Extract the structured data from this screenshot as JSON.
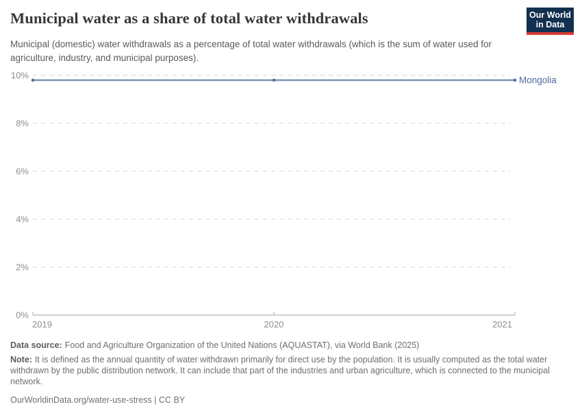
{
  "logo": {
    "line1": "Our World",
    "line2": "in Data"
  },
  "chart_data": {
    "type": "line",
    "title": "Municipal water as a share of total water withdrawals",
    "subtitle": "Municipal (domestic) water withdrawals as a percentage of total water withdrawals (which is the sum of water used for agriculture, industry, and municipal purposes).",
    "x": [
      2019,
      2020,
      2021
    ],
    "series": [
      {
        "name": "Mongolia",
        "values": [
          9.8,
          9.8,
          9.8
        ],
        "line_color": "#7d92b2",
        "marker_color": "#53719f",
        "label_color": "#4d6b9e"
      }
    ],
    "xlim": [
      2019,
      2021
    ],
    "ylim": [
      0,
      10
    ],
    "xticks": [
      2019,
      2020,
      2021
    ],
    "yticks": [
      0,
      2,
      4,
      6,
      8,
      10
    ],
    "ytick_suffix": "%",
    "grid": "horizontal-dashed",
    "legend_position": "inline-right-of-line-end"
  },
  "footer": {
    "data_source_label": "Data source:",
    "data_source": "Food and Agriculture Organization of the United Nations (AQUASTAT), via World Bank (2025)",
    "note_label": "Note:",
    "note": "It is defined as the annual quantity of water withdrawn primarily for direct use by the population. It is usually computed as the total water withdrawn by the public distribution network. It can include that part of the industries and urban agriculture, which is connected to the municipal network.",
    "citation": "OurWorldinData.org/water-use-stress | CC BY"
  },
  "colors": {
    "brand_navy": "#12304f",
    "brand_red": "#d93b33",
    "series_blue": "#4c6a9c",
    "grid": "#dcdcdc",
    "axis": "#c8c8c8",
    "tick_text": "#8e8e8e"
  }
}
